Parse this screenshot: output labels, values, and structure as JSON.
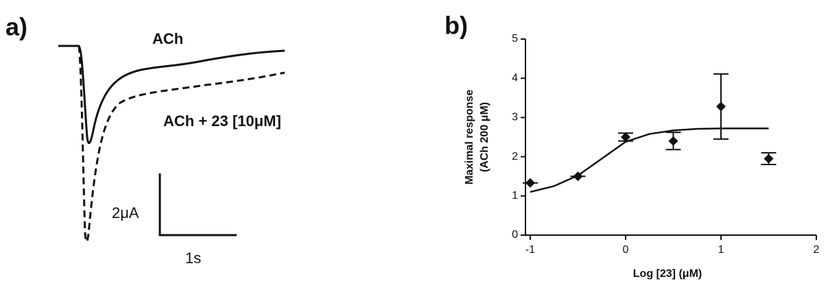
{
  "panel_a": {
    "label": "a)",
    "trace_1": "ACh",
    "trace_2": "ACh + 23 [10μM]",
    "scale_y": "2μA",
    "scale_x": "1s"
  },
  "chart_data": {
    "type": "scatter",
    "panel_label": "b)",
    "xlabel": "Log [23] (μM)",
    "ylabel": [
      "Maximal response",
      "(ACh 200 μM)"
    ],
    "x": [
      -1,
      -0.5,
      0,
      0.5,
      1,
      1.5
    ],
    "values": [
      1.33,
      1.5,
      2.5,
      2.4,
      3.28,
      1.95
    ],
    "errors": [
      0,
      0,
      0.1,
      0.22,
      0.83,
      0.15
    ],
    "color": "#111111",
    "fit": {
      "x": [
        -1,
        -0.75,
        -0.5,
        -0.25,
        0,
        0.25,
        0.5,
        0.75,
        1,
        1.25,
        1.5
      ],
      "values": [
        1.1,
        1.25,
        1.52,
        1.95,
        2.38,
        2.58,
        2.67,
        2.71,
        2.72,
        2.72,
        2.72
      ]
    },
    "xlim": [
      -1.05,
      2
    ],
    "ylim": [
      0,
      5
    ],
    "xticks": [
      -1,
      0,
      1,
      2
    ],
    "yticks": [
      0,
      1,
      2,
      3,
      4,
      5
    ]
  }
}
